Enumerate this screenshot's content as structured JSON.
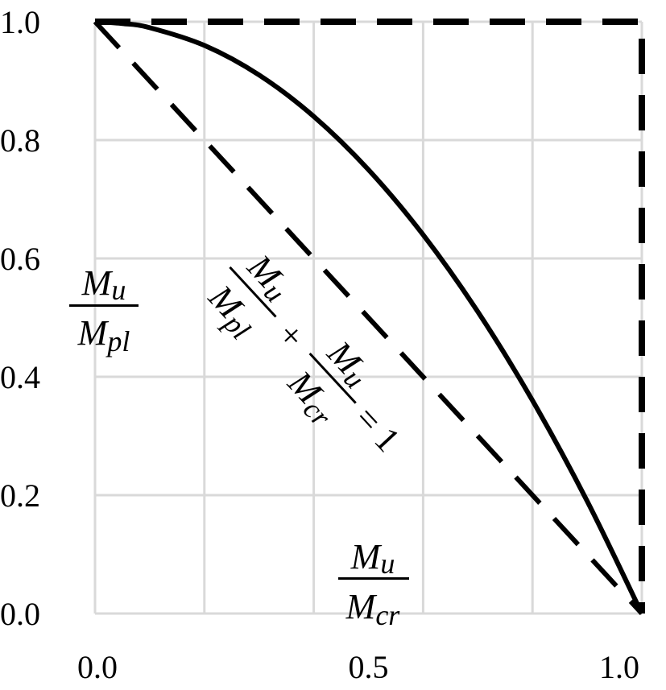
{
  "chart_data": {
    "type": "line",
    "xlim": [
      0,
      1
    ],
    "ylim": [
      0,
      1
    ],
    "grid": true,
    "x_ticks": [
      "0.0",
      "0.5",
      "1.0"
    ],
    "y_ticks": [
      "0.0",
      "0.2",
      "0.4",
      "0.6",
      "0.8",
      "1.0"
    ],
    "ylabel": {
      "num": "M",
      "num_sub": "u",
      "den": "M",
      "den_sub": "pl"
    },
    "xlabel": {
      "num": "M",
      "num_sub": "u",
      "den": "M",
      "den_sub": "cr"
    },
    "equation": {
      "t1_num": "M",
      "t1_num_sub": "u",
      "t1_den": "M",
      "t1_den_sub": "pl",
      "plus": "+",
      "t2_num": "M",
      "t2_num_sub": "u",
      "t2_den": "M",
      "t2_den_sub": "cr",
      "rhs": "= 1"
    },
    "series": [
      {
        "style": "solid",
        "x": [
          0.0,
          0.05,
          0.1,
          0.2,
          0.3,
          0.4,
          0.5,
          0.6,
          0.7,
          0.8,
          0.9,
          1.0
        ],
        "y": [
          1.0,
          0.997,
          0.99,
          0.96,
          0.91,
          0.84,
          0.75,
          0.64,
          0.51,
          0.36,
          0.19,
          0.0
        ]
      },
      {
        "style": "dashed",
        "x": [
          0.0,
          1.0
        ],
        "y": [
          1.0,
          0.0
        ]
      },
      {
        "style": "dashed-bold",
        "x": [
          0.0,
          1.0,
          1.0
        ],
        "y": [
          1.0,
          1.0,
          0.0
        ]
      }
    ]
  }
}
